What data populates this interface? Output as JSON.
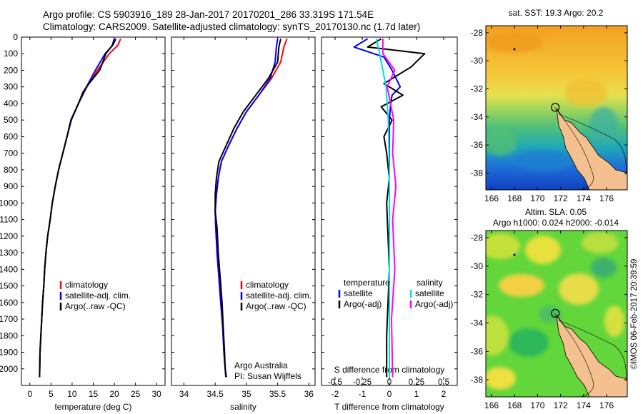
{
  "header": {
    "line1": "Argo profile: CS 5903916_189 28-Jan-2017 20170201_286 33.319S 171.54E",
    "line2": "Climatology: CARS2009. Satellite-adjusted climatology: synTS_20170130.nc (1.7d later)"
  },
  "colors": {
    "climatology": "#ff0000",
    "satellite": "#0000ff",
    "argo": "#000000",
    "sal_satellite": "#00e0e0",
    "sal_argo": "#ff00ff",
    "land": "#f5c08f"
  },
  "chart_data": [
    {
      "type": "line",
      "name": "temperature-profile",
      "xlabel": "temperature (deg C)",
      "ylabel": "",
      "xlim": [
        -2,
        32
      ],
      "ylim": [
        2100,
        0
      ],
      "xticks": [
        0,
        5,
        10,
        15,
        20,
        25,
        30
      ],
      "yticks": [
        0,
        100,
        200,
        300,
        400,
        500,
        600,
        700,
        800,
        900,
        1000,
        1100,
        1200,
        1300,
        1400,
        1500,
        1600,
        1700,
        1800,
        1900,
        2000
      ],
      "legend": [
        "climatology",
        "satellite-adj. clim.",
        "Argo(..raw -QC)"
      ],
      "series": [
        {
          "name": "climatology",
          "x": [
            21.5,
            20.8,
            18.8,
            16.0,
            13.5,
            11.5,
            9.8,
            8.8,
            7.8,
            6.8,
            6.0,
            5.3,
            4.8,
            4.2,
            3.8,
            3.5,
            3.3,
            3.0,
            2.8,
            2.6,
            2.4,
            2.3
          ],
          "y": [
            10,
            50,
            100,
            200,
            300,
            400,
            500,
            600,
            700,
            800,
            900,
            1000,
            1100,
            1200,
            1300,
            1400,
            1500,
            1600,
            1700,
            1800,
            1900,
            2050
          ]
        },
        {
          "name": "satellite-adj. clim.",
          "x": [
            20.4,
            19.6,
            17.8,
            15.5,
            13.4,
            11.5,
            9.8,
            8.8,
            7.8,
            6.8,
            6.0,
            5.3,
            4.8,
            4.2,
            3.8,
            3.5,
            3.3,
            3.0,
            2.8,
            2.6,
            2.4,
            2.3
          ],
          "y": [
            10,
            50,
            100,
            200,
            300,
            400,
            500,
            600,
            700,
            800,
            900,
            1000,
            1100,
            1200,
            1300,
            1400,
            1500,
            1600,
            1700,
            1800,
            1900,
            2050
          ]
        },
        {
          "name": "Argo(..raw -QC)",
          "x": [
            20.0,
            19.5,
            18.0,
            16.5,
            14.0,
            12.6,
            11.5,
            9.7,
            8.8,
            7.8,
            6.8,
            6.0,
            5.3,
            4.8,
            4.2,
            3.8,
            3.5,
            3.3,
            3.0,
            2.8,
            2.6,
            2.4,
            2.3
          ],
          "y": [
            10,
            50,
            100,
            200,
            280,
            330,
            400,
            500,
            600,
            700,
            800,
            900,
            1000,
            1100,
            1200,
            1300,
            1400,
            1500,
            1600,
            1700,
            1800,
            1900,
            2050
          ]
        }
      ]
    },
    {
      "type": "line",
      "name": "salinity-profile",
      "xlabel": "salinity",
      "ylabel": "",
      "xlim": [
        33.8,
        36.1
      ],
      "ylim": [
        2100,
        0
      ],
      "xticks": [
        34,
        34.5,
        35,
        35.5,
        36
      ],
      "legend": [
        "climatology",
        "satellite-adj. clim.",
        "Argo(..raw -QC)"
      ],
      "annotation": [
        "Argo Australia",
        "PI: Susan Wijffels"
      ],
      "series": [
        {
          "name": "climatology",
          "x": [
            35.65,
            35.6,
            35.55,
            35.4,
            35.2,
            35.0,
            34.85,
            34.72,
            34.6,
            34.55,
            34.52,
            34.5,
            34.51,
            34.53,
            34.56,
            34.59,
            34.62,
            34.64,
            34.66,
            34.68
          ],
          "y": [
            10,
            60,
            150,
            250,
            350,
            450,
            550,
            650,
            750,
            850,
            950,
            1050,
            1150,
            1300,
            1450,
            1600,
            1750,
            1900,
            2000,
            2050
          ]
        },
        {
          "name": "satellite-adj. clim.",
          "x": [
            35.5,
            35.48,
            35.46,
            35.38,
            35.2,
            35.0,
            34.85,
            34.72,
            34.6,
            34.55,
            34.52,
            34.5,
            34.51,
            34.53,
            34.56,
            34.59,
            34.62,
            34.64,
            34.66,
            34.68
          ],
          "y": [
            10,
            60,
            150,
            250,
            350,
            450,
            550,
            650,
            750,
            850,
            950,
            1050,
            1150,
            1300,
            1450,
            1600,
            1750,
            1900,
            2000,
            2050
          ]
        },
        {
          "name": "Argo(..raw -QC)",
          "x": [
            35.55,
            35.52,
            35.5,
            35.35,
            35.15,
            34.95,
            34.8,
            34.68,
            34.56,
            34.52,
            34.5,
            34.5,
            34.53,
            34.55,
            34.58,
            34.61,
            34.63,
            34.65,
            34.66,
            34.67
          ],
          "y": [
            10,
            60,
            150,
            250,
            350,
            450,
            550,
            650,
            750,
            850,
            950,
            1050,
            1150,
            1300,
            1450,
            1600,
            1750,
            1900,
            2000,
            2050
          ]
        }
      ]
    },
    {
      "type": "line",
      "name": "difference-from-climatology",
      "xlabel": "T difference from climatology",
      "x2label": "S difference from climatology",
      "xlim": [
        -2.5,
        2.5
      ],
      "ylim": [
        2100,
        0
      ],
      "xticks": [
        -2,
        -1,
        0,
        1,
        2
      ],
      "x2ticks": [
        -0.5,
        -0.25,
        0,
        0.25,
        0.5
      ],
      "x2lim": [
        -0.625,
        0.625
      ],
      "legend_left_title": "temperature",
      "legend_right_title": "salinity",
      "legend": [
        "satellite",
        "Argo(-adj)",
        "satellite",
        "Argo(-adj)"
      ],
      "series": [
        {
          "name": "satellite",
          "axis": "T",
          "x": [
            -0.8,
            -1.3,
            -0.2,
            0.1,
            0.4,
            0.1,
            0.05,
            0.0,
            0.0,
            0.0,
            0.0,
            0.0,
            0.0,
            0.0,
            0.0,
            0.0
          ],
          "y": [
            10,
            60,
            120,
            200,
            300,
            350,
            400,
            500,
            700,
            900,
            1100,
            1300,
            1500,
            1700,
            1900,
            2050
          ]
        },
        {
          "name": "Argo(-adj)",
          "axis": "T",
          "x": [
            -0.3,
            -0.8,
            1.3,
            0.8,
            -0.2,
            0.5,
            -0.3,
            0.1,
            -0.2,
            -0.1,
            0.0,
            -0.1,
            -0.05,
            0.0,
            -0.05,
            -0.1,
            -0.1
          ],
          "y": [
            10,
            60,
            100,
            180,
            280,
            350,
            420,
            500,
            600,
            700,
            850,
            1000,
            1200,
            1400,
            1600,
            1800,
            2050
          ]
        },
        {
          "name": "satellite",
          "axis": "S",
          "x": [
            -0.12,
            -0.09,
            -0.06,
            -0.03,
            -0.01,
            0.0,
            0.0,
            0.0,
            0.0
          ],
          "y": [
            10,
            100,
            200,
            300,
            500,
            800,
            1200,
            1600,
            2050
          ]
        },
        {
          "name": "Argo(-adj)",
          "axis": "S",
          "x": [
            -0.06,
            -0.06,
            0.05,
            -0.02,
            0.04,
            0.03,
            0.06,
            0.03,
            0.05,
            0.02,
            0.03
          ],
          "y": [
            10,
            100,
            200,
            300,
            500,
            700,
            900,
            1100,
            1400,
            1700,
            2050
          ]
        }
      ]
    },
    {
      "type": "heatmap",
      "name": "satellite-sst-map",
      "title": "sat. SST: 19.3 Argo: 20.2",
      "xlim": [
        165.5,
        177.8
      ],
      "ylim": [
        -39.2,
        -27.5
      ],
      "xticks": [
        166,
        168,
        170,
        172,
        174,
        176
      ],
      "yticks": [
        -28,
        -30,
        -32,
        -34,
        -36,
        -38
      ],
      "marker": [
        171.54,
        -33.319
      ]
    },
    {
      "type": "heatmap",
      "name": "sea-level-anomaly-map",
      "title": "Altim. SLA: 0.05",
      "subtitle": "Argo h1000: 0.024 h2000: -0.014",
      "xlim": [
        165.5,
        177.8
      ],
      "ylim": [
        -39.2,
        -27.5
      ],
      "xticks": [
        166,
        168,
        170,
        172,
        174,
        176
      ],
      "yticks": [
        -28,
        -30,
        -32,
        -34,
        -36,
        -38
      ],
      "marker": [
        171.54,
        -33.319
      ]
    }
  ],
  "footer": {
    "stamp": "©IMOS 06-Feb-2017 20:39:59"
  }
}
